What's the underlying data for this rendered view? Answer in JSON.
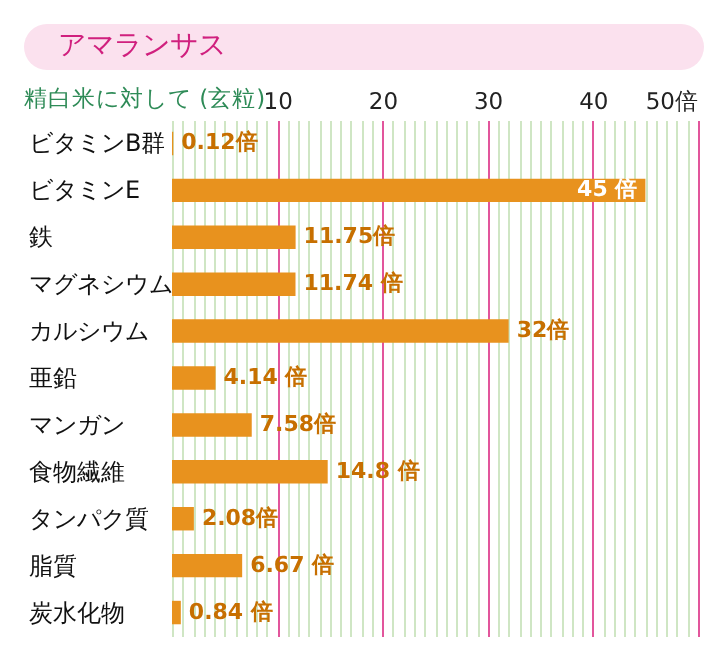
{
  "chart_data": {
    "type": "bar",
    "orientation": "horizontal",
    "title": "アマランサス",
    "subtitle": "精白米に対して (玄粒)",
    "categories": [
      "ビタミンB群",
      "ビタミンE",
      "鉄",
      "マグネシウム",
      "カルシウム",
      "亜鉛",
      "マンガン",
      "食物繊維",
      "タンパク質",
      "脂質",
      "炭水化物"
    ],
    "values": [
      0.12,
      45,
      11.75,
      11.74,
      32,
      4.14,
      7.58,
      14.8,
      2.08,
      6.67,
      0.84
    ],
    "value_labels": [
      "0.12倍",
      "45 倍",
      "11.75倍",
      "11.74 倍",
      "32倍",
      "4.14 倍",
      "7.58倍",
      "14.8 倍",
      "2.08倍",
      "6.67 倍",
      "0.84 倍"
    ],
    "color": "#e8921e",
    "xlim": [
      0,
      50
    ],
    "xticks": [
      10,
      20,
      30,
      40,
      {
        "value": 50,
        "label": "50倍"
      }
    ],
    "grid": true
  }
}
